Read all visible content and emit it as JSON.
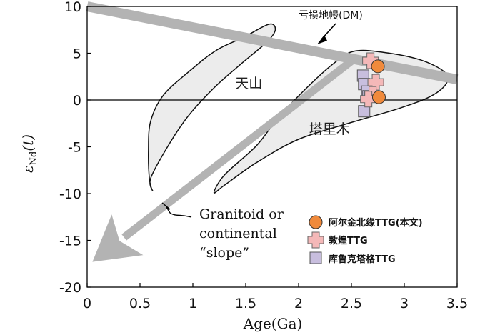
{
  "chart_data": {
    "type": "scatter",
    "xlabel": "Age(Ga)",
    "ylabel_symbol": "ε",
    "ylabel_sub": "Nd",
    "ylabel_arg": "(t)",
    "xlim": [
      0,
      3.5
    ],
    "ylim": [
      -20,
      10
    ],
    "xticks": [
      "0",
      "0.5",
      "1",
      "1.5",
      "2",
      "2.5",
      "3",
      "3.5"
    ],
    "yticks": [
      "10",
      "5",
      "0",
      "-5",
      "-10",
      "-15",
      "-20"
    ],
    "xtick_values": [
      0,
      0.5,
      1,
      1.5,
      2,
      2.5,
      3,
      3.5
    ],
    "ytick_values": [
      10,
      5,
      0,
      -5,
      -10,
      -15,
      -20
    ],
    "zero_line": 0,
    "regions": [
      {
        "name": "天山",
        "label_at": [
          1.4,
          1.3
        ],
        "outline": [
          [
            0.62,
            -9.7
          ],
          [
            0.6,
            -8.4
          ],
          [
            0.75,
            -5.2
          ],
          [
            0.95,
            -1.8
          ],
          [
            1.2,
            1.3
          ],
          [
            1.45,
            3.8
          ],
          [
            1.7,
            6.2
          ],
          [
            1.78,
            7.5
          ],
          [
            1.72,
            8.1
          ],
          [
            1.48,
            6.7
          ],
          [
            1.22,
            5.3
          ],
          [
            0.98,
            3.2
          ],
          [
            0.72,
            0.5
          ],
          [
            0.6,
            -2.3
          ],
          [
            0.58,
            -5.5
          ],
          [
            0.59,
            -8.5
          ]
        ]
      },
      {
        "name": "塔里木",
        "label_at": [
          2.1,
          -3.6
        ],
        "outline": [
          [
            1.2,
            -9.9
          ],
          [
            1.3,
            -8
          ],
          [
            1.6,
            -4.9
          ],
          [
            1.8,
            -2
          ],
          [
            2.05,
            1
          ],
          [
            2.32,
            3.8
          ],
          [
            2.52,
            5.2
          ],
          [
            2.8,
            5.1
          ],
          [
            3.15,
            4.3
          ],
          [
            3.38,
            3
          ],
          [
            3.4,
            1.8
          ],
          [
            3.25,
            0.4
          ],
          [
            2.95,
            -0.9
          ],
          [
            2.5,
            -2.4
          ],
          [
            2.0,
            -4.2
          ],
          [
            1.6,
            -6.7
          ],
          [
            1.3,
            -9.1
          ]
        ]
      }
    ],
    "dm_line": {
      "label": "亏损地幔(DM)",
      "start": [
        0,
        10
      ],
      "end": [
        3.5,
        2.2
      ]
    },
    "crust_arrow": {
      "label_lines": [
        "Granitoid or",
        "continental",
        "“slope”"
      ],
      "from": [
        2.55,
        4.6
      ],
      "to": [
        0.05,
        -17.3
      ]
    },
    "series": [
      {
        "name": "阿尔金北缘TTG(本文)",
        "marker": "circle",
        "color": "#f08a3c",
        "points": [
          [
            2.75,
            3.6
          ],
          [
            2.76,
            0.3
          ]
        ]
      },
      {
        "name": "敦煌TTG",
        "marker": "cross",
        "color": "#f4b8b8",
        "points": [
          [
            2.68,
            4.2
          ],
          [
            2.73,
            1.9
          ],
          [
            2.7,
            0.6
          ],
          [
            2.66,
            0.1
          ]
        ]
      },
      {
        "name": "库鲁克塔格TTG",
        "marker": "square",
        "color": "#c8bede",
        "points": [
          [
            2.61,
            2.6
          ],
          [
            2.62,
            1.7
          ],
          [
            2.65,
            0.9
          ],
          [
            2.66,
            0.4
          ],
          [
            2.62,
            -1.2
          ]
        ]
      }
    ]
  }
}
